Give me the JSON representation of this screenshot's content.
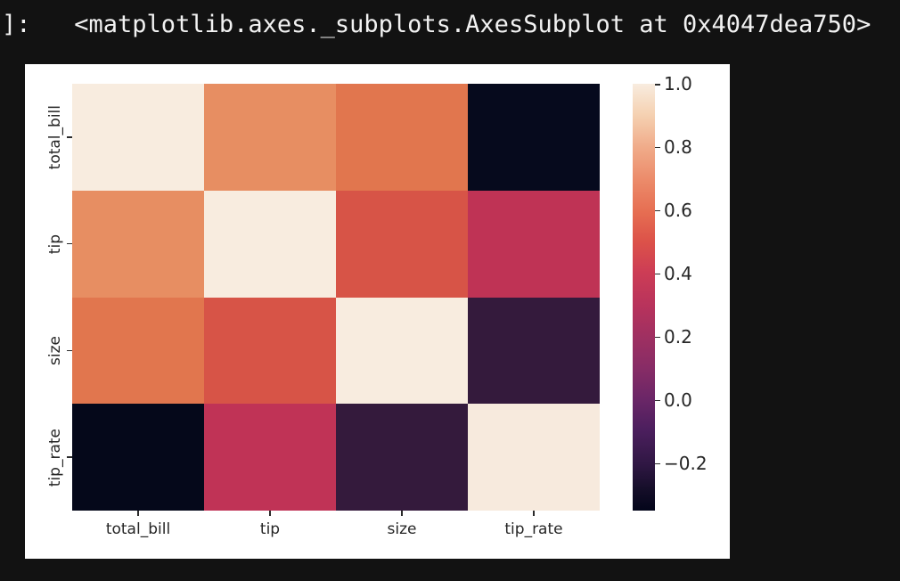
{
  "page": {
    "background": "#121212"
  },
  "output": {
    "text": "]:   <matplotlib.axes._subplots.AxesSubplot at 0x4047dea750>",
    "color": "#f2f2f2"
  },
  "figure": {
    "background": "#ffffff"
  },
  "chart_data": {
    "type": "heatmap",
    "title": "",
    "description": "Correlation matrix heatmap of the tips dataset (seaborn rocket colormap)",
    "x_categories": [
      "total_bill",
      "tip",
      "size",
      "tip_rate"
    ],
    "y_categories": [
      "total_bill",
      "tip",
      "size",
      "tip_rate"
    ],
    "matrix": [
      [
        1.0,
        0.68,
        0.6,
        -0.34
      ],
      [
        0.68,
        1.0,
        0.49,
        0.34
      ],
      [
        0.6,
        0.49,
        1.0,
        -0.13
      ],
      [
        -0.34,
        0.34,
        -0.13,
        1.0
      ]
    ],
    "cell_colors": [
      [
        "#f8ecdf",
        "#e78e62",
        "#e1764e",
        "#060a1d"
      ],
      [
        "#e78e62",
        "#f8ecdf",
        "#d75447",
        "#bf3355"
      ],
      [
        "#e1764e",
        "#d75447",
        "#f8ecdf",
        "#341a3c"
      ],
      [
        "#05081a",
        "#c03356",
        "#341a3c",
        "#f7eadd"
      ]
    ],
    "colormap": "rocket",
    "grid": false,
    "tick_color": "#2a2a2a",
    "label_color": "#262626",
    "colorbar": {
      "position": "right",
      "vmin": -0.35,
      "vmax": 1.0,
      "tick_values": [
        1.0,
        0.8,
        0.6,
        0.4,
        0.2,
        0.0,
        -0.2
      ],
      "tick_labels": [
        "1.0",
        "0.8",
        "0.6",
        "0.4",
        "0.2",
        "0.0",
        "−0.2"
      ],
      "gradient_stops": [
        {
          "pos": 0,
          "color": "#f8ecdf"
        },
        {
          "pos": 7,
          "color": "#f5d2b3"
        },
        {
          "pos": 15,
          "color": "#f0ab89"
        },
        {
          "pos": 22,
          "color": "#ec8d6c"
        },
        {
          "pos": 30,
          "color": "#e66e52"
        },
        {
          "pos": 37,
          "color": "#dc5249"
        },
        {
          "pos": 44,
          "color": "#cd3d55"
        },
        {
          "pos": 52,
          "color": "#b8335c"
        },
        {
          "pos": 59,
          "color": "#a03061"
        },
        {
          "pos": 67,
          "color": "#862c66"
        },
        {
          "pos": 74,
          "color": "#6a2667"
        },
        {
          "pos": 81,
          "color": "#4c1f5e"
        },
        {
          "pos": 89,
          "color": "#301744"
        },
        {
          "pos": 95,
          "color": "#150e29"
        },
        {
          "pos": 100,
          "color": "#03051a"
        }
      ]
    }
  }
}
